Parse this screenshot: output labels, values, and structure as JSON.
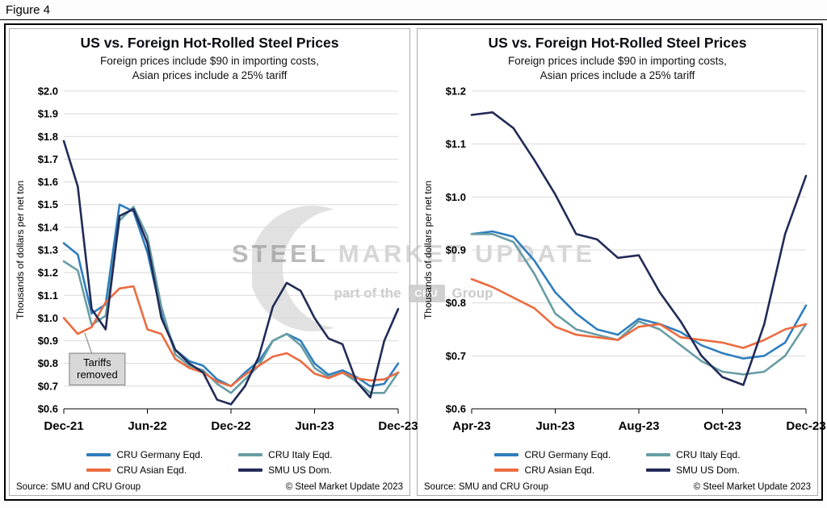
{
  "figure_label": "Figure 4",
  "watermark": {
    "brand_strong": "STEEL",
    "brand_light": "MARKET UPDATE",
    "tagline_prefix": "part of the",
    "tagline_logo": "CRU",
    "tagline_suffix": "Group"
  },
  "panel_footer": {
    "source": "Source: SMU and CRU Group",
    "copyright": "© Steel Market Update 2023"
  },
  "chart_data": [
    {
      "type": "line",
      "title": "US vs. Foreign Hot-Rolled Steel Prices",
      "subtitle": [
        "Foreign prices include $90 in importing costs,",
        "Asian prices include a 25% tariff"
      ],
      "ylabel": "Thousands of dollars per net ton",
      "ylim": [
        0.6,
        2.0
      ],
      "ytick_step": 0.1,
      "ytick_format": "$0.0",
      "grid": "horizontal",
      "legend_position": "bottom",
      "x": [
        "Dec-21",
        "Jan-22",
        "Feb-22",
        "Mar-22",
        "Apr-22",
        "May-22",
        "Jun-22",
        "Jul-22",
        "Aug-22",
        "Sep-22",
        "Oct-22",
        "Nov-22",
        "Dec-22",
        "Jan-23",
        "Feb-23",
        "Mar-23",
        "Apr-23",
        "May-23",
        "Jun-23",
        "Jul-23",
        "Aug-23",
        "Sep-23",
        "Oct-23",
        "Nov-23",
        "Dec-23"
      ],
      "xticks": [
        {
          "i": 0,
          "label": "Dec-21"
        },
        {
          "i": 6,
          "label": "Jun-22"
        },
        {
          "i": 12,
          "label": "Dec-22"
        },
        {
          "i": 18,
          "label": "Jun-23"
        },
        {
          "i": 24,
          "label": "Dec-23"
        }
      ],
      "series": [
        {
          "name": "CRU Germany Eqd.",
          "color": "#2e7ebd",
          "values": [
            1.33,
            1.28,
            1.02,
            1.06,
            1.5,
            1.47,
            1.29,
            1.02,
            0.86,
            0.81,
            0.79,
            0.73,
            0.7,
            0.76,
            0.81,
            0.9,
            0.93,
            0.9,
            0.8,
            0.75,
            0.77,
            0.74,
            0.7,
            0.71,
            0.8
          ]
        },
        {
          "name": "CRU Italy Eqd.",
          "color": "#689da4",
          "values": [
            1.25,
            1.21,
            0.97,
            1.01,
            1.43,
            1.49,
            1.36,
            1.05,
            0.84,
            0.79,
            0.77,
            0.71,
            0.67,
            0.73,
            0.79,
            0.9,
            0.93,
            0.88,
            0.78,
            0.74,
            0.76,
            0.72,
            0.67,
            0.67,
            0.76
          ]
        },
        {
          "name": "CRU Asian Eqd.",
          "color": "#ec6b3f",
          "values": [
            1.0,
            0.93,
            0.96,
            1.07,
            1.13,
            1.14,
            0.95,
            0.93,
            0.82,
            0.78,
            0.76,
            0.72,
            0.7,
            0.75,
            0.79,
            0.83,
            0.845,
            0.81,
            0.755,
            0.735,
            0.76,
            0.735,
            0.725,
            0.73,
            0.76
          ]
        },
        {
          "name": "SMU US Dom.",
          "color": "#222b57",
          "values": [
            1.78,
            1.58,
            1.04,
            0.95,
            1.45,
            1.48,
            1.33,
            1.0,
            0.86,
            0.8,
            0.76,
            0.64,
            0.62,
            0.7,
            0.83,
            1.05,
            1.155,
            1.12,
            1.0,
            0.91,
            0.885,
            0.72,
            0.65,
            0.9,
            1.04
          ]
        }
      ],
      "annotation": {
        "lines": [
          "Tariffs",
          "removed"
        ],
        "box_i": [
          0.4,
          4.4
        ],
        "box_v": [
          0.705,
          0.845
        ],
        "leader_i": [
          2.0,
          1.5
        ],
        "leader_v": [
          0.845,
          0.935
        ]
      }
    },
    {
      "type": "line",
      "title": "US vs. Foreign Hot-Rolled Steel Prices",
      "subtitle": [
        "Foreign prices include $90 in importing costs,",
        "Asian prices include a 25% tariff"
      ],
      "ylabel": "Thousands of dollars per net ton",
      "ylim": [
        0.6,
        1.2
      ],
      "ytick_step": 0.1,
      "ytick_format": "$0.0",
      "grid": "horizontal",
      "legend_position": "bottom",
      "x": [
        "Apr-23",
        "mid-Apr-23",
        "May-23",
        "mid-May-23",
        "Jun-23",
        "mid-Jun-23",
        "Jul-23",
        "mid-Jul-23",
        "Aug-23",
        "mid-Aug-23",
        "Sep-23",
        "mid-Sep-23",
        "Oct-23",
        "mid-Oct-23",
        "Nov-23",
        "mid-Nov-23",
        "Dec-23"
      ],
      "xticks": [
        {
          "i": 0,
          "label": "Apr-23"
        },
        {
          "i": 4,
          "label": "Jun-23"
        },
        {
          "i": 8,
          "label": "Aug-23"
        },
        {
          "i": 12,
          "label": "Oct-23"
        },
        {
          "i": 16,
          "label": "Dec-23"
        }
      ],
      "series": [
        {
          "name": "CRU Germany Eqd.",
          "color": "#2e7ebd",
          "values": [
            0.93,
            0.935,
            0.925,
            0.88,
            0.82,
            0.78,
            0.75,
            0.74,
            0.77,
            0.76,
            0.745,
            0.72,
            0.705,
            0.695,
            0.7,
            0.725,
            0.795
          ]
        },
        {
          "name": "CRU Italy Eqd.",
          "color": "#689da4",
          "values": [
            0.93,
            0.93,
            0.915,
            0.855,
            0.78,
            0.75,
            0.74,
            0.73,
            0.765,
            0.75,
            0.72,
            0.69,
            0.67,
            0.665,
            0.67,
            0.7,
            0.76
          ]
        },
        {
          "name": "CRU Asian Eqd.",
          "color": "#ec6b3f",
          "values": [
            0.845,
            0.83,
            0.81,
            0.79,
            0.755,
            0.74,
            0.735,
            0.73,
            0.755,
            0.76,
            0.735,
            0.73,
            0.725,
            0.715,
            0.73,
            0.75,
            0.76
          ]
        },
        {
          "name": "SMU US Dom.",
          "color": "#222b57",
          "values": [
            1.155,
            1.16,
            1.13,
            1.07,
            1.005,
            0.93,
            0.92,
            0.885,
            0.89,
            0.82,
            0.765,
            0.7,
            0.66,
            0.645,
            0.76,
            0.93,
            1.04
          ]
        }
      ]
    }
  ]
}
